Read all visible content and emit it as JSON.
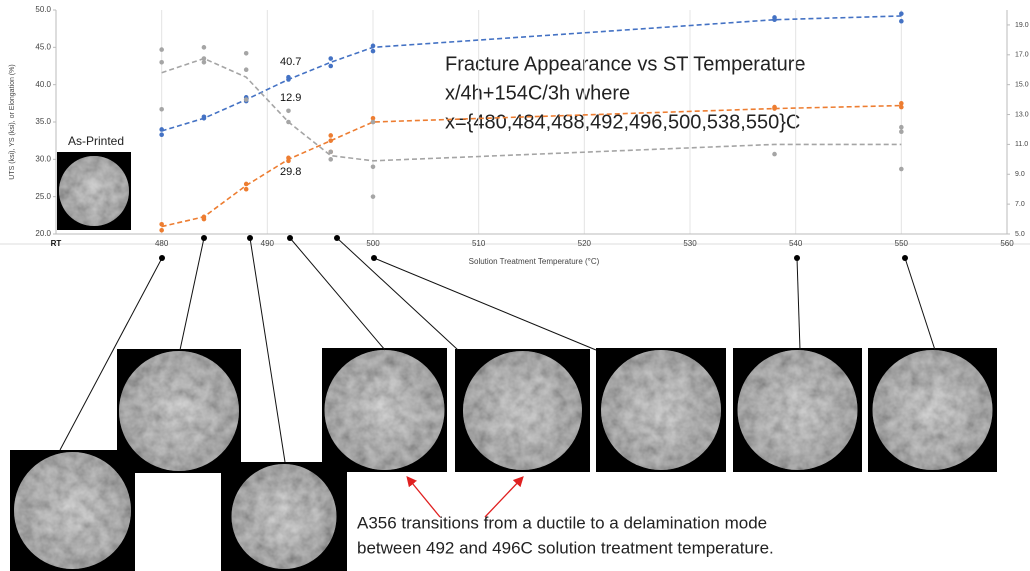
{
  "chart_data": {
    "type": "scatter",
    "xlabel": "Solution Treatment Temperature (°C)",
    "ylabel": "UTS (ksi), YS (ksi), or Elongation (%)",
    "xlim": [
      470,
      560
    ],
    "xticks": [
      {
        "value": 470,
        "label": "RT"
      },
      480,
      490,
      500,
      510,
      520,
      530,
      540,
      550,
      560
    ],
    "ylim": [
      20,
      50
    ],
    "yticks": [
      {
        "value": 20,
        "label": "20.0"
      },
      {
        "value": 25,
        "label": "25.0"
      },
      {
        "value": 30,
        "label": "30.0"
      },
      {
        "value": 35,
        "label": "35.0"
      },
      {
        "value": 40,
        "label": "40.0"
      },
      {
        "value": 45,
        "label": "45.0"
      },
      {
        "value": 50,
        "label": "50.0"
      }
    ],
    "y2lim": [
      5,
      20
    ],
    "y2ticks": [
      {
        "value": 5,
        "label": "5.0"
      },
      {
        "value": 7,
        "label": "7.0"
      },
      {
        "value": 9,
        "label": "9.0"
      },
      {
        "value": 11,
        "label": "11.0"
      },
      {
        "value": 13,
        "label": "13.0"
      },
      {
        "value": 15,
        "label": "15.0"
      },
      {
        "value": 17,
        "label": "17.0"
      },
      {
        "value": 19,
        "label": "19.0"
      }
    ],
    "grid": true,
    "trend_x": [
      480,
      484,
      488,
      492,
      496,
      500,
      538,
      550
    ],
    "series": [
      {
        "color": "#4472c4",
        "x": [
          480,
          480,
          484,
          484,
          488,
          488,
          492,
          492,
          496,
          496,
          500,
          500,
          538,
          538,
          550,
          550
        ],
        "values": [
          34,
          33.3,
          35.5,
          35.7,
          37.8,
          38.3,
          40.7,
          41,
          42.5,
          43.5,
          44.5,
          45.2,
          48.7,
          49,
          48.5,
          49.5
        ],
        "trend": [
          33.8,
          35.5,
          38,
          40.7,
          43,
          45,
          48.7,
          49.2
        ]
      },
      {
        "color": "#ed7d31",
        "x": [
          480,
          480,
          484,
          484,
          488,
          488,
          492,
          492,
          496,
          496,
          496,
          500,
          500,
          538,
          538,
          550,
          550
        ],
        "values": [
          21.3,
          20.5,
          22,
          22.3,
          26,
          26.7,
          29.8,
          30.2,
          32.5,
          33.2,
          31,
          35,
          35.5,
          36.8,
          37,
          37,
          37.5
        ],
        "trend": [
          21,
          22.3,
          26.5,
          30,
          32.5,
          35,
          36.8,
          37.2
        ]
      },
      {
        "color": "#a5a5a5",
        "axis": "y2",
        "x": [
          480,
          480,
          480,
          484,
          484,
          484,
          488,
          488,
          488,
          492,
          492,
          496,
          496,
          500,
          500,
          500,
          538,
          550,
          550,
          550
        ],
        "values": [
          17.35,
          16.5,
          13.35,
          17.5,
          16.75,
          16.5,
          17.1,
          16,
          14,
          13.25,
          12.5,
          10.5,
          10,
          12.5,
          9.5,
          7.5,
          10.35,
          12.15,
          11.85,
          9.35
        ],
        "trend": [
          15.8,
          16.75,
          15.5,
          12.5,
          10.25,
          9.9,
          11,
          11
        ]
      }
    ],
    "annotations": [
      "40.7",
      "12.9",
      "29.8"
    ],
    "notes": [
      "Fracture Appearance vs ST Temperature",
      "x/4h+154C/3h where",
      "x={480,484,488,492,496,500,538,550}C"
    ],
    "inset_label": "As-Printed",
    "caption": [
      "A356 transitions from a ductile to a delamination mode",
      "between 492 and 496C solution treatment temperature."
    ]
  }
}
